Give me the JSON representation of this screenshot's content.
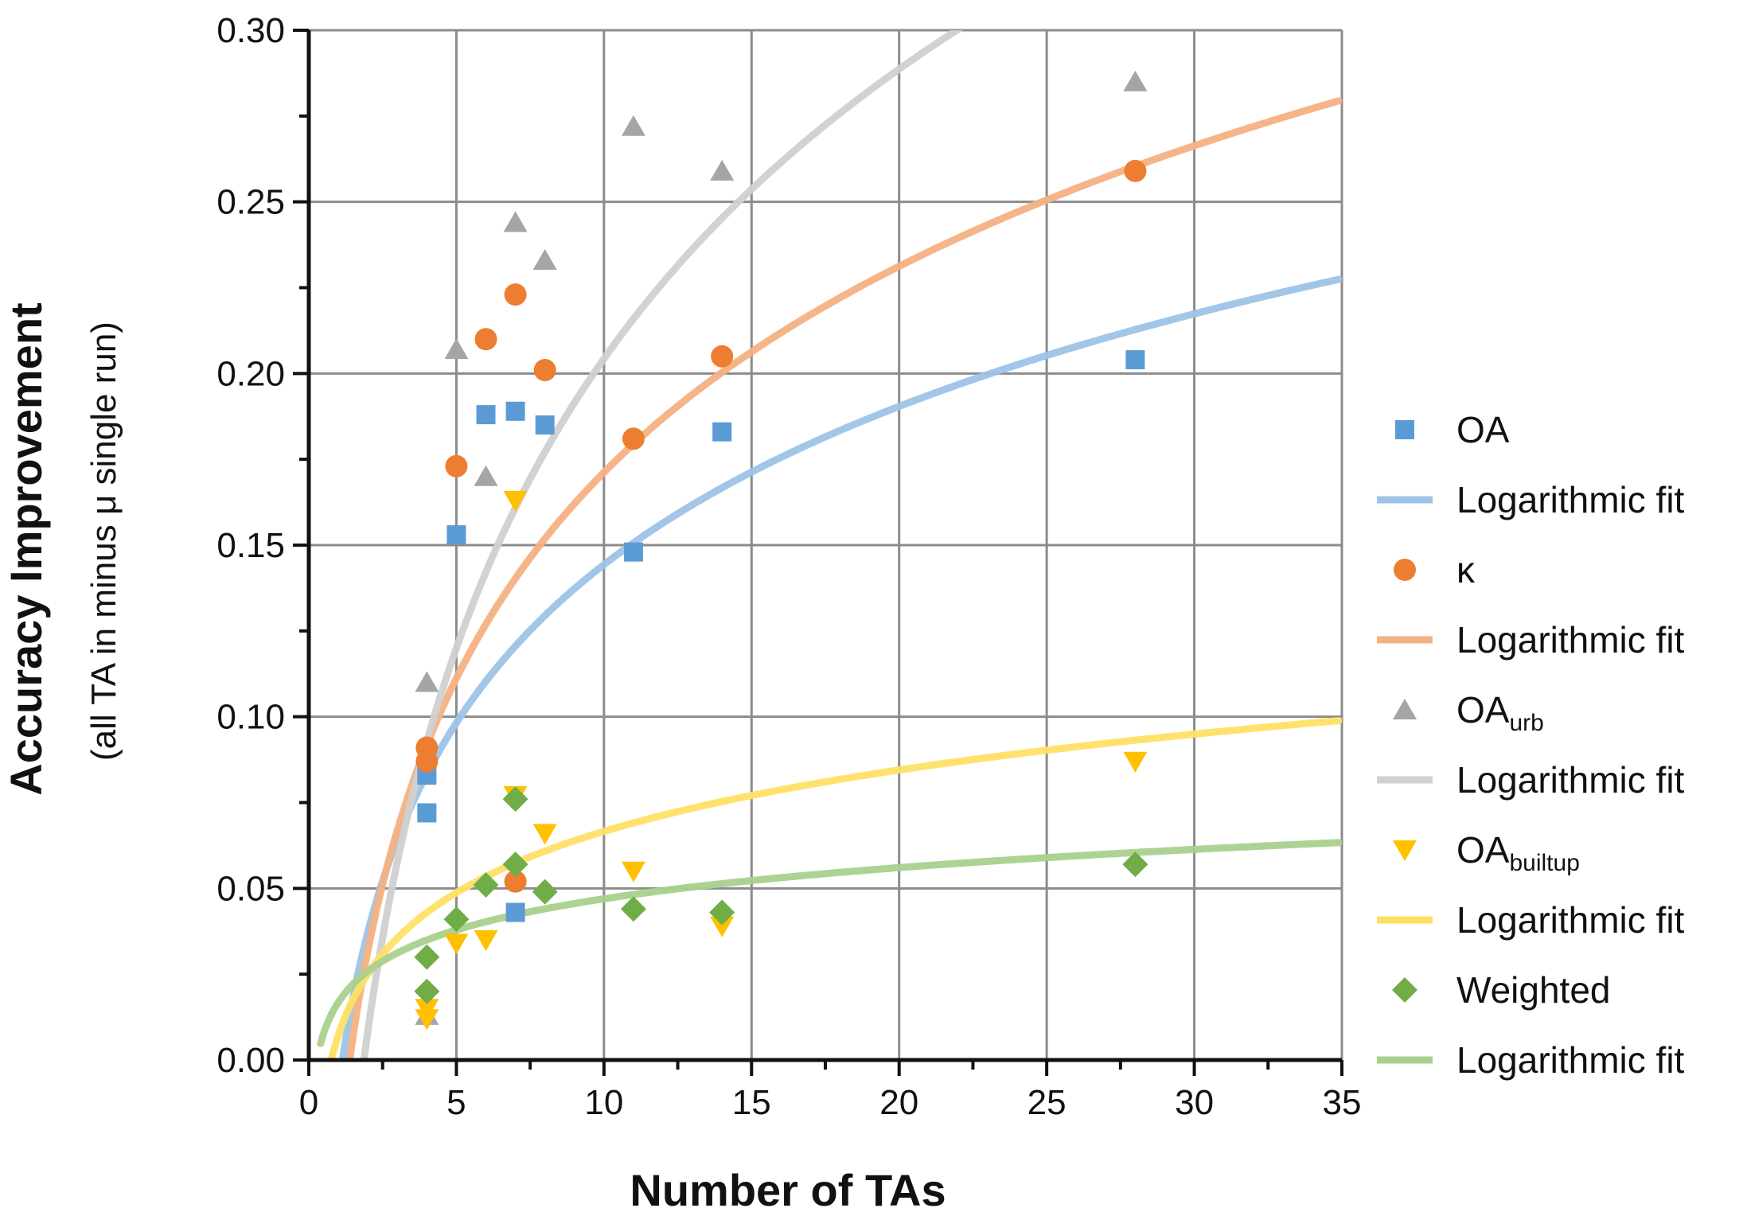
{
  "chart_data": {
    "type": "scatter",
    "title": "",
    "xlabel": "Number of TAs",
    "ylabel": "Accuracy Improvement",
    "ylabel_sub": "(all TA in minus μ single run)",
    "xlim": [
      0,
      35
    ],
    "ylim": [
      0,
      0.3
    ],
    "x_ticks": [
      0,
      5,
      10,
      15,
      20,
      25,
      30,
      35
    ],
    "y_ticks": [
      0.0,
      0.05,
      0.1,
      0.15,
      0.2,
      0.25,
      0.3
    ],
    "x_tick_labels": [
      "0",
      "5",
      "10",
      "15",
      "20",
      "25",
      "30",
      "35"
    ],
    "y_tick_labels": [
      "0.00",
      "0.05",
      "0.10",
      "0.15",
      "0.20",
      "0.25",
      "0.30"
    ],
    "grid": true,
    "legend_position": "right",
    "series": [
      {
        "name": "OA",
        "name_sub": "",
        "marker": "square",
        "color": "#5b9bd5",
        "fit_label": "Logarithmic fit",
        "fit_color": "#9dc3e6",
        "fit": {
          "a": 0.0665,
          "b": -0.0088
        },
        "points": [
          [
            4,
            0.083
          ],
          [
            4,
            0.072
          ],
          [
            5,
            0.153
          ],
          [
            6,
            0.188
          ],
          [
            7,
            0.189
          ],
          [
            7,
            0.043
          ],
          [
            8,
            0.185
          ],
          [
            11,
            0.148
          ],
          [
            14,
            0.183
          ],
          [
            28,
            0.204
          ]
        ]
      },
      {
        "name": "κ",
        "name_sub": "",
        "marker": "circle",
        "color": "#ed7d31",
        "fit_label": "Logarithmic fit",
        "fit_color": "#f4b183",
        "fit": {
          "a": 0.0866,
          "b": -0.0282
        },
        "points": [
          [
            4,
            0.091
          ],
          [
            4,
            0.087
          ],
          [
            5,
            0.173
          ],
          [
            6,
            0.21
          ],
          [
            7,
            0.223
          ],
          [
            7,
            0.052
          ],
          [
            8,
            0.201
          ],
          [
            11,
            0.181
          ],
          [
            14,
            0.205
          ],
          [
            28,
            0.259
          ]
        ]
      },
      {
        "name": "OA",
        "name_sub": "urb",
        "marker": "triangle-up",
        "color": "#a5a5a5",
        "fit_label": "Logarithmic fit",
        "fit_color": "#d0d0d0",
        "fit": {
          "a": 0.1217,
          "b": -0.0759
        },
        "points": [
          [
            4,
            0.11
          ],
          [
            4,
            0.013
          ],
          [
            5,
            0.207
          ],
          [
            6,
            0.17
          ],
          [
            7,
            0.244
          ],
          [
            8,
            0.233
          ],
          [
            11,
            0.272
          ],
          [
            14,
            0.259
          ],
          [
            28,
            0.285
          ]
        ]
      },
      {
        "name": "OA",
        "name_sub": "builtup",
        "marker": "triangle-down",
        "color": "#ffc000",
        "fit_label": "Logarithmic fit",
        "fit_color": "#ffe066",
        "fit": {
          "a": 0.0258,
          "b": 0.0072
        },
        "points": [
          [
            4,
            0.015
          ],
          [
            4,
            0.012
          ],
          [
            5,
            0.034
          ],
          [
            6,
            0.035
          ],
          [
            7,
            0.163
          ],
          [
            7,
            0.077
          ],
          [
            8,
            0.066
          ],
          [
            11,
            0.055
          ],
          [
            14,
            0.039
          ],
          [
            28,
            0.087
          ]
        ]
      },
      {
        "name": "Weighted",
        "name_sub": "",
        "marker": "diamond",
        "color": "#70ad47",
        "fit_label": "Logarithmic fit",
        "fit_color": "#a9d18e",
        "fit": {
          "a": 0.0131,
          "b": 0.0168
        },
        "points": [
          [
            4,
            0.03
          ],
          [
            4,
            0.02
          ],
          [
            5,
            0.041
          ],
          [
            6,
            0.051
          ],
          [
            7,
            0.076
          ],
          [
            7,
            0.057
          ],
          [
            8,
            0.049
          ],
          [
            11,
            0.044
          ],
          [
            14,
            0.043
          ],
          [
            28,
            0.057
          ]
        ]
      }
    ]
  }
}
